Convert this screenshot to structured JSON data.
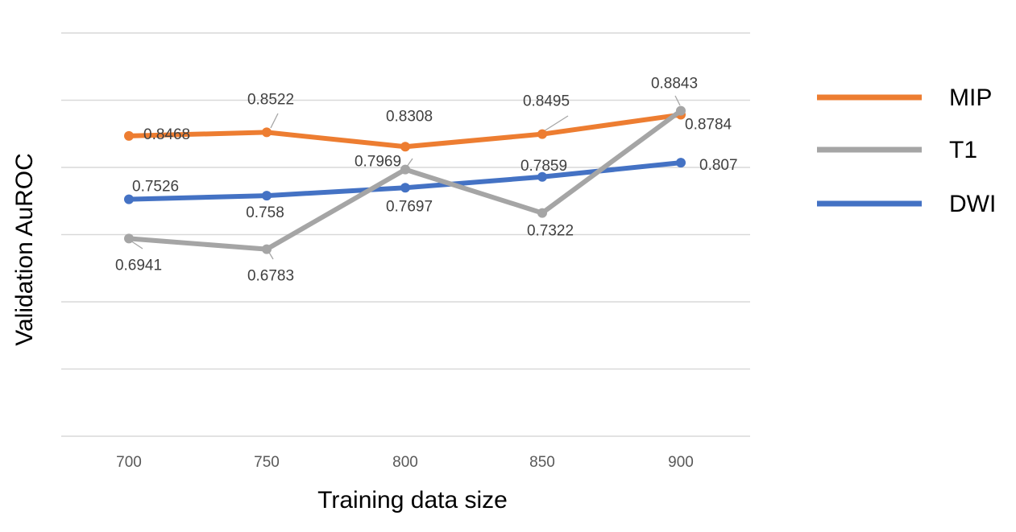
{
  "chart_data": {
    "type": "line",
    "x": [
      700,
      750,
      800,
      850,
      900
    ],
    "categories": [
      "700",
      "750",
      "800",
      "850",
      "900"
    ],
    "xlabel": "Training data size",
    "ylabel": "Validation AuROC",
    "ylim": [
      0.4,
      1.0
    ],
    "grid": true,
    "legend": "right",
    "series": [
      {
        "name": "MIP",
        "color": "#ED7D31",
        "values": [
          0.8468,
          0.8522,
          0.8308,
          0.8495,
          0.8784
        ],
        "labels": [
          "0.8468",
          "0.8522",
          "0.8308",
          "0.8495",
          "0.8784"
        ]
      },
      {
        "name": "T1",
        "color": "#A5A5A5",
        "values": [
          0.6941,
          0.6783,
          0.7969,
          0.7322,
          0.8843
        ],
        "labels": [
          "0.6941",
          "0.6783",
          "0.7969",
          "0.7322",
          "0.8843"
        ]
      },
      {
        "name": "DWI",
        "color": "#4472C4",
        "values": [
          0.7526,
          0.758,
          0.7697,
          0.7859,
          0.807
        ],
        "labels": [
          "0.7526",
          "0.758",
          "0.7697",
          "0.7859",
          "0.807"
        ]
      }
    ]
  }
}
